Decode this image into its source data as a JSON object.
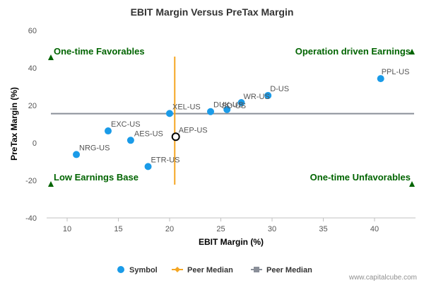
{
  "chart_data": {
    "type": "scatter",
    "title": "EBIT Margin Versus PreTax Margin",
    "xlabel": "EBIT Margin (%)",
    "ylabel": "PreTax Margin (%)",
    "xlim": [
      8,
      44
    ],
    "ylim": [
      -40,
      60
    ],
    "xticks": [
      10,
      15,
      20,
      25,
      30,
      35,
      40
    ],
    "yticks": [
      -40,
      -20,
      0,
      20,
      40,
      60
    ],
    "points": [
      {
        "symbol": "PPL-US",
        "x": 40.6,
        "y": 34.3
      },
      {
        "symbol": "D-US",
        "x": 29.6,
        "y": 25.3
      },
      {
        "symbol": "WR-US",
        "x": 27.0,
        "y": 21.5
      },
      {
        "symbol": "SO-US",
        "x": 25.6,
        "y": 17.8
      },
      {
        "symbol": "DUK-US",
        "x": 24.0,
        "y": 16.7
      },
      {
        "symbol": "XEL-US",
        "x": 20.0,
        "y": 15.7
      },
      {
        "symbol": "EXC-US",
        "x": 14.0,
        "y": 6.4
      },
      {
        "symbol": "AES-US",
        "x": 16.2,
        "y": 1.4
      },
      {
        "symbol": "NRG-US",
        "x": 10.9,
        "y": -6.2
      },
      {
        "symbol": "ETR-US",
        "x": 17.9,
        "y": -12.6
      }
    ],
    "highlight": {
      "symbol": "AEP-US",
      "x": 20.6,
      "y": 3.3
    },
    "peer_median_x": 20.5,
    "peer_median_y": 15.6,
    "quadrants": {
      "top_left": "One-time Favorables",
      "top_right": "Operation driven Earnings",
      "bottom_left": "Low Earnings Base",
      "bottom_right": "One-time Unfavorables"
    },
    "legend": [
      "Symbol",
      "Peer Median",
      "Peer Median"
    ],
    "colors": {
      "points": "#1a9be8",
      "vertical_median": "#f5a623",
      "horizontal_median": "#8a8f99",
      "quadrant_text": "#006400"
    }
  },
  "footer": {
    "credit": "www.capitalcube.com"
  }
}
